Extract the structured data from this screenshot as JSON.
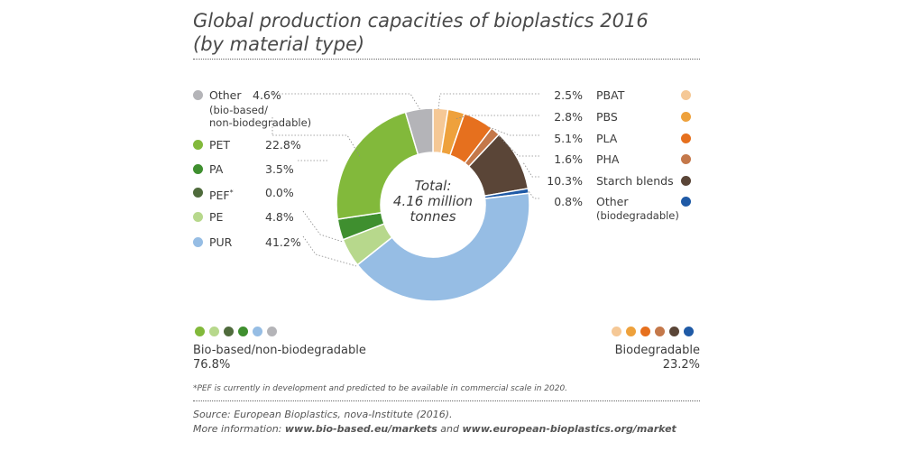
{
  "title_line1": "Global production capacities of bioplastics 2016",
  "title_line2": "(by material type)",
  "chart_data": {
    "type": "pie",
    "title": "Global production capacities of bioplastics 2016 (by material type)",
    "center_label_lines": [
      "Total:",
      "4.16 million",
      "tonnes"
    ],
    "slices": [
      {
        "label": "PBAT",
        "value": 2.5,
        "pct_text": "2.5%",
        "color": "#f5c896"
      },
      {
        "label": "PBS",
        "value": 2.8,
        "pct_text": "2.8%",
        "color": "#eea13c"
      },
      {
        "label": "PLA",
        "value": 5.1,
        "pct_text": "5.1%",
        "color": "#e6701e"
      },
      {
        "label": "PHA",
        "value": 1.6,
        "pct_text": "1.6%",
        "color": "#c4784a"
      },
      {
        "label": "Starch blends",
        "value": 10.3,
        "pct_text": "10.3%",
        "color": "#5a4537"
      },
      {
        "label": "Other",
        "sublabel": "(biodegradable)",
        "value": 0.8,
        "pct_text": "0.8%",
        "color": "#1f5aa6"
      },
      {
        "label": "PUR",
        "value": 41.2,
        "pct_text": "41.2%",
        "color": "#96bde4"
      },
      {
        "label": "PE",
        "value": 4.8,
        "pct_text": "4.8%",
        "color": "#b7d88c"
      },
      {
        "label": "PEF*",
        "value": 0.0,
        "pct_text": "0.0%",
        "color": "#4f6b3c"
      },
      {
        "label": "PA",
        "value": 3.5,
        "pct_text": "3.5%",
        "color": "#3f8f2f"
      },
      {
        "label": "PET",
        "value": 22.8,
        "pct_text": "22.8%",
        "color": "#82b93b"
      },
      {
        "label": "Other",
        "sublabel": "(bio-based/ non-biodegradable)",
        "value": 4.6,
        "pct_text": "4.6%",
        "color": "#b4b4b8"
      }
    ],
    "groups": [
      {
        "name": "Bio-based/non-biodegradable",
        "value": 76.8,
        "pct_text": "76.8%"
      },
      {
        "name": "Biodegradable",
        "value": 23.2,
        "pct_text": "23.2%"
      }
    ]
  },
  "legend_left": [
    {
      "label": "Other",
      "sub1": "(bio-based/",
      "sub2": "non-biodegradable)",
      "pct": "4.6%",
      "color": "#b4b4b8"
    },
    {
      "label": "PET",
      "pct": "22.8%",
      "color": "#82b93b"
    },
    {
      "label": "PA",
      "pct": "3.5%",
      "color": "#3f8f2f"
    },
    {
      "label": "PEF",
      "sup": "*",
      "pct": "0.0%",
      "color": "#4f6b3c"
    },
    {
      "label": "PE",
      "pct": "4.8%",
      "color": "#b7d88c"
    },
    {
      "label": "PUR",
      "pct": "41.2%",
      "color": "#96bde4"
    }
  ],
  "legend_right": [
    {
      "label": "PBAT",
      "pct": "2.5%",
      "color": "#f5c896"
    },
    {
      "label": "PBS",
      "pct": "2.8%",
      "color": "#eea13c"
    },
    {
      "label": "PLA",
      "pct": "5.1%",
      "color": "#e6701e"
    },
    {
      "label": "PHA",
      "pct": "1.6%",
      "color": "#c4784a"
    },
    {
      "label": "Starch blends",
      "pct": "10.3%",
      "color": "#5a4537"
    },
    {
      "label": "Other",
      "sub1": "(biodegradable)",
      "pct": "0.8%",
      "color": "#1f5aa6"
    }
  ],
  "group_left": {
    "label": "Bio-based/non-biodegradable",
    "pct": "76.8%",
    "colors": [
      "#82b93b",
      "#b7d88c",
      "#4f6b3c",
      "#3f8f2f",
      "#96bde4",
      "#b4b4b8"
    ]
  },
  "group_right": {
    "label": "Biodegradable",
    "pct": "23.2%",
    "colors": [
      "#f5c896",
      "#eea13c",
      "#e6701e",
      "#c4784a",
      "#5a4537",
      "#1f5aa6"
    ]
  },
  "footnote": "*PEF is currently in development and predicted to be available in commercial scale in 2020.",
  "source_line1": "Source: European Bioplastics, nova-Institute (2016).",
  "source_line2_prefix": "More information: ",
  "source_link1": "www.bio-based.eu/markets",
  "source_and": " and ",
  "source_link2": "www.european-bioplastics.org/market"
}
